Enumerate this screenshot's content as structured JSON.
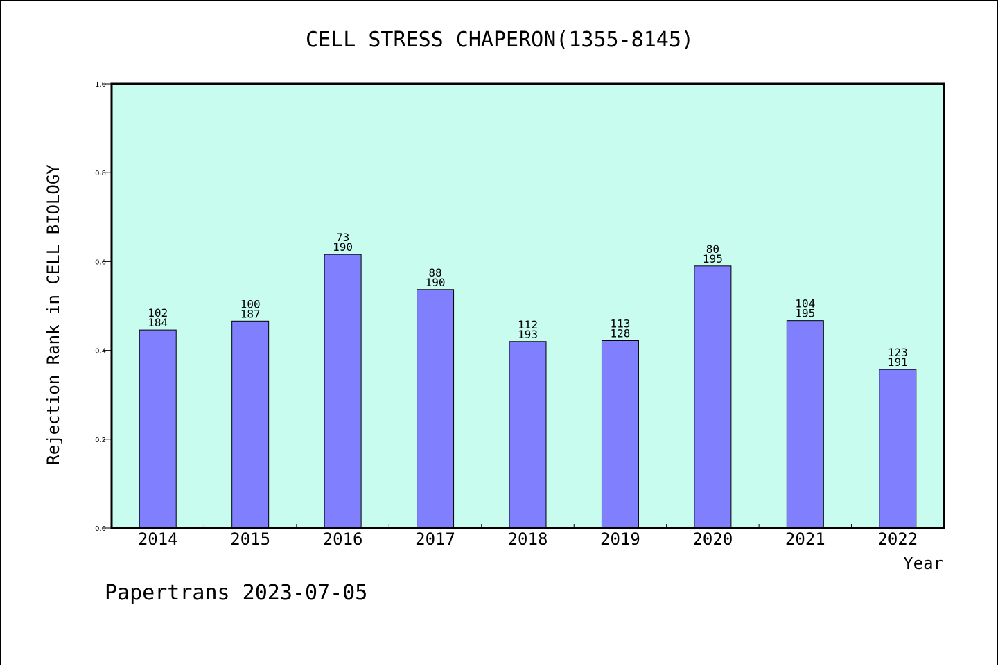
{
  "colors": {
    "plot_background": "#c8fcef",
    "bar_fill": "#8080ff",
    "bar_stroke": "#000000",
    "axis": "#000000"
  },
  "footer": "Papertrans 2023-07-05",
  "chart_data": {
    "type": "bar",
    "title": "CELL STRESS CHAPERON(1355-8145)",
    "xlabel": "Year",
    "ylabel": "Rejection Rank in CELL BIOLOGY",
    "ylim": [
      0,
      1.0
    ],
    "yticks": [
      "0.0",
      "0.2",
      "0.4",
      "0.6",
      "0.8",
      "1.0"
    ],
    "grid": false,
    "categories": [
      "2014",
      "2015",
      "2016",
      "2017",
      "2018",
      "2019",
      "2020",
      "2021",
      "2022"
    ],
    "values": [
      0.446,
      0.466,
      0.616,
      0.537,
      0.42,
      0.422,
      0.59,
      0.467,
      0.357
    ],
    "labels_top": [
      "102",
      "100",
      "73",
      "88",
      "112",
      "113",
      "80",
      "104",
      "123"
    ],
    "labels_bottom": [
      "184",
      "187",
      "190",
      "190",
      "193",
      "128",
      "195",
      "195",
      "191"
    ]
  }
}
